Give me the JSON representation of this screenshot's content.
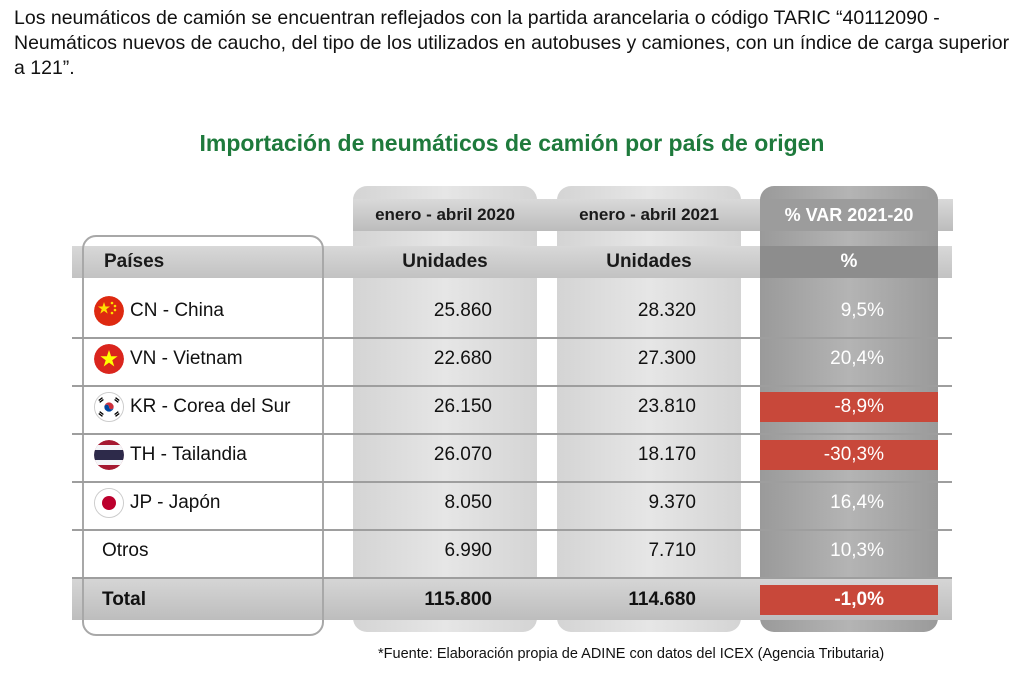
{
  "intro": "Los neumáticos de camión se encuentran reflejados con la partida arancelaria o código TARIC “40112090 - Neumáticos nuevos de caucho, del tipo de los utilizados en autobuses y camiones, con un índice de carga superior a 121”.",
  "table": {
    "title": "Importación de neumáticos de camión por país de origen",
    "period_headers": [
      "enero - abril 2020",
      "enero - abril 2021",
      "% VAR 2021-20"
    ],
    "unit_headers": {
      "country": "Países",
      "u2020": "Unidades",
      "u2021": "Unidades",
      "pct": "%"
    },
    "rows": [
      {
        "country": "CN - China",
        "flag": "china-flag-icon",
        "v2020": "25.860",
        "v2021": "28.320",
        "var": "9,5%",
        "negative": false
      },
      {
        "country": "VN - Vietnam",
        "flag": "vietnam-flag-icon",
        "v2020": "22.680",
        "v2021": "27.300",
        "var": "20,4%",
        "negative": false
      },
      {
        "country": "KR - Corea del Sur",
        "flag": "south-korea-flag-icon",
        "v2020": "26.150",
        "v2021": "23.810",
        "var": "-8,9%",
        "negative": true
      },
      {
        "country": "TH - Tailandia",
        "flag": "thailand-flag-icon",
        "v2020": "26.070",
        "v2021": "18.170",
        "var": "-30,3%",
        "negative": true
      },
      {
        "country": "JP - Japón",
        "flag": "japan-flag-icon",
        "v2020": "8.050",
        "v2021": "9.370",
        "var": "16,4%",
        "negative": false
      },
      {
        "country": "Otros",
        "flag": null,
        "v2020": "6.990",
        "v2021": "7.710",
        "var": "10,3%",
        "negative": false
      }
    ],
    "total": {
      "label": "Total",
      "v2020": "115.800",
      "v2021": "114.680",
      "var": "-1,0%",
      "negative": true
    }
  },
  "source": "*Fuente: Elaboración propia de ADINE con datos del ICEX (Agencia Tributaria)",
  "colors": {
    "title_green": "#1e7a3c",
    "negative_red": "#c8483a",
    "var_gray": "#9c9c9c"
  }
}
